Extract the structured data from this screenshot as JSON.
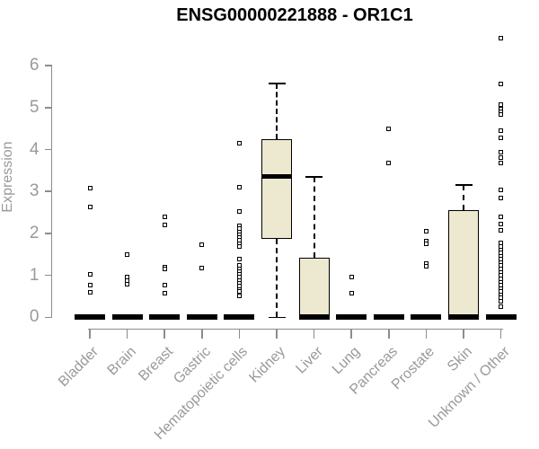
{
  "chart_data": {
    "type": "boxplot",
    "title": "ENSG00000221888 - OR1C1",
    "ylabel": "Expression",
    "xlabel": "",
    "ylim": [
      0,
      6.8
    ],
    "yticks": [
      0,
      1,
      2,
      3,
      4,
      5,
      6
    ],
    "grid": false,
    "legend": "none",
    "categories": [
      "Bladder",
      "Brain",
      "Breast",
      "Gastric",
      "Hematopoietic cells",
      "Kidney",
      "Liver",
      "Lung",
      "Pancreas",
      "Prostate",
      "Skin",
      "Unknown / Other"
    ],
    "boxes": [
      {
        "label": "Bladder",
        "collapsed": true,
        "stats": {
          "low": 0,
          "q1": 0,
          "median": 0,
          "q3": 0,
          "high": 0
        },
        "outliers": [
          3.08,
          2.63,
          1.03,
          0.77,
          0.59
        ]
      },
      {
        "label": "Brain",
        "collapsed": true,
        "stats": {
          "low": 0,
          "q1": 0,
          "median": 0,
          "q3": 0,
          "high": 0
        },
        "outliers": [
          1.5,
          0.95,
          0.87,
          0.78
        ]
      },
      {
        "label": "Breast",
        "collapsed": true,
        "stats": {
          "low": 0,
          "q1": 0,
          "median": 0,
          "q3": 0,
          "high": 0
        },
        "outliers": [
          2.39,
          2.21,
          1.2,
          1.16,
          0.77,
          0.58
        ]
      },
      {
        "label": "Gastric",
        "collapsed": true,
        "stats": {
          "low": 0,
          "q1": 0,
          "median": 0,
          "q3": 0,
          "high": 0
        },
        "outliers": [
          1.73,
          1.18
        ]
      },
      {
        "label": "Hematopoietic cells",
        "collapsed": true,
        "stats": {
          "low": 0,
          "q1": 0,
          "median": 0,
          "q3": 0,
          "high": 0
        },
        "outliers": [
          4.16,
          3.11,
          2.52,
          2.18,
          2.11,
          2.04,
          1.97,
          1.9,
          1.83,
          1.76,
          1.69,
          1.38,
          1.23,
          1.16,
          1.09,
          1.02,
          0.95,
          0.88,
          0.81,
          0.74,
          0.67,
          0.61,
          0.5
        ]
      },
      {
        "label": "Kidney",
        "collapsed": false,
        "stats": {
          "low": 0,
          "q1": 1.86,
          "median": 3.36,
          "q3": 4.24,
          "high": 5.58
        },
        "outliers": []
      },
      {
        "label": "Liver",
        "collapsed": false,
        "stats": {
          "low": 0,
          "q1": 0,
          "median": 0,
          "q3": 1.43,
          "high": 3.35
        },
        "outliers": []
      },
      {
        "label": "Lung",
        "collapsed": true,
        "stats": {
          "low": 0,
          "q1": 0,
          "median": 0,
          "q3": 0,
          "high": 0
        },
        "outliers": [
          0.96,
          0.57
        ]
      },
      {
        "label": "Pancreas",
        "collapsed": true,
        "stats": {
          "low": 0,
          "q1": 0,
          "median": 0,
          "q3": 0,
          "high": 0
        },
        "outliers": [
          4.5,
          3.68
        ]
      },
      {
        "label": "Prostate",
        "collapsed": true,
        "stats": {
          "low": 0,
          "q1": 0,
          "median": 0,
          "q3": 0,
          "high": 0
        },
        "outliers": [
          2.05,
          1.82,
          1.76,
          1.28,
          1.21
        ]
      },
      {
        "label": "Skin",
        "collapsed": false,
        "stats": {
          "low": 0,
          "q1": 0,
          "median": 0,
          "q3": 2.55,
          "high": 3.16
        },
        "outliers": []
      },
      {
        "label": "Unknown / Other",
        "collapsed": true,
        "stats": {
          "low": 0,
          "q1": 0,
          "median": 0,
          "q3": 0,
          "high": 0
        },
        "outliers": [
          6.66,
          5.57,
          5.08,
          4.96,
          4.9,
          4.83,
          4.46,
          4.28,
          3.93,
          3.81,
          3.68,
          3.03,
          2.84,
          2.39,
          2.23,
          2.08,
          1.77,
          1.69,
          1.61,
          1.53,
          1.46,
          1.38,
          1.3,
          1.23,
          1.15,
          1.07,
          1.0,
          0.92,
          0.84,
          0.77,
          0.69,
          0.61,
          0.54,
          0.46,
          0.38,
          0.25
        ]
      }
    ],
    "style": {
      "box_fill": "#EDE8D0",
      "box_border": "#000000",
      "point_border": "#000000",
      "axis_color": "#8C8C8C",
      "label_color": "#999999",
      "title_color": "#000000",
      "background": "#FFFFFF"
    }
  }
}
